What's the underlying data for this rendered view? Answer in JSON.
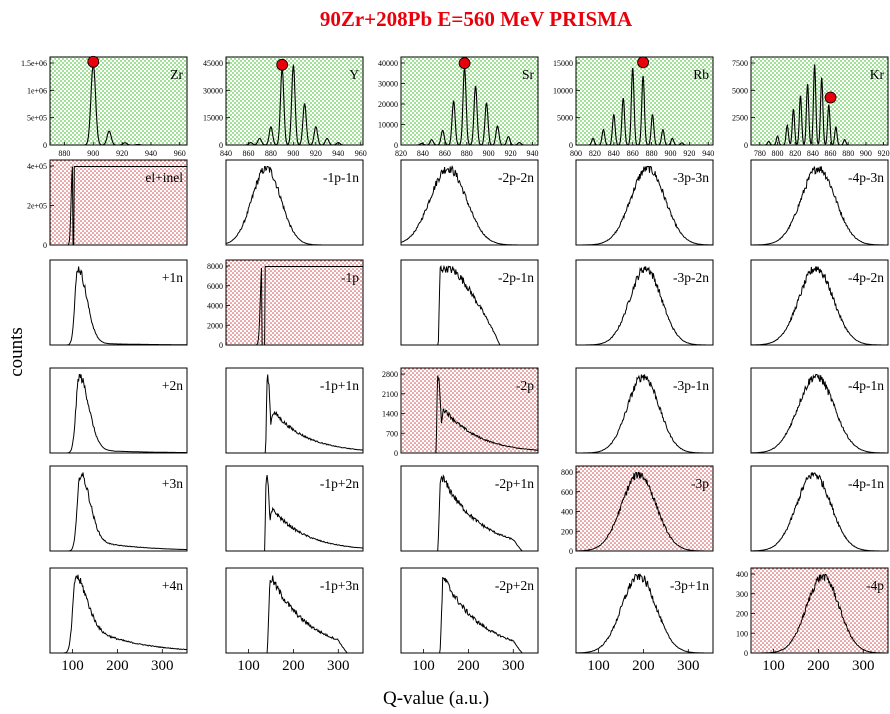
{
  "chart_data": {
    "type": "grid-of-histograms",
    "title": "90Zr+208Pb E=560 MeV PRISMA",
    "xlabel": "Q-value (a.u.)",
    "ylabel": "counts",
    "xticks_bottom": [
      "100",
      "200",
      "300"
    ],
    "colors": {
      "title": "#e8000b",
      "marker": "#e8000b",
      "top_row_fill": "#9be08f",
      "diag_fill": "#e06b6b",
      "curve": "#000000"
    },
    "top_row": [
      {
        "label": "Zr",
        "xticks": [
          "880",
          "900",
          "920",
          "940",
          "960"
        ],
        "xlim": [
          870,
          965
        ],
        "yticks": [
          "0",
          "5e+05",
          "1e+06",
          "1.5e+06"
        ],
        "ylim": [
          0,
          1550000
        ],
        "peaks": [
          [
            900,
            1450000,
            1.6
          ],
          [
            911,
            250000,
            1.4
          ],
          [
            922,
            40000,
            1.4
          ],
          [
            931,
            8000,
            1.4
          ]
        ],
        "marker": [
          900,
          1500000
        ]
      },
      {
        "label": "Y",
        "xticks": [
          "840",
          "860",
          "880",
          "900",
          "920",
          "940",
          "960"
        ],
        "xlim": [
          840,
          962
        ],
        "yticks": [
          "0",
          "15000",
          "30000",
          "45000"
        ],
        "ylim": [
          0,
          52000
        ],
        "peaks": [
          [
            862,
            1500,
            1.6
          ],
          [
            870,
            4000,
            1.6
          ],
          [
            880,
            11000,
            1.5
          ],
          [
            890,
            46000,
            1.5
          ],
          [
            900,
            48000,
            1.5
          ],
          [
            910,
            25000,
            1.5
          ],
          [
            920,
            11000,
            1.5
          ],
          [
            930,
            4000,
            1.5
          ],
          [
            940,
            1500,
            1.5
          ]
        ],
        "marker": [
          890,
          48500
        ]
      },
      {
        "label": "Sr",
        "xticks": [
          "820",
          "840",
          "860",
          "880",
          "900",
          "920",
          "940"
        ],
        "xlim": [
          820,
          945
        ],
        "yticks": [
          "0",
          "10000",
          "20000",
          "30000",
          "40000"
        ],
        "ylim": [
          0,
          41000
        ],
        "peaks": [
          [
            839,
            800,
            1.4
          ],
          [
            848,
            2500,
            1.4
          ],
          [
            858,
            7000,
            1.4
          ],
          [
            868,
            21000,
            1.4
          ],
          [
            878,
            37000,
            1.4
          ],
          [
            888,
            28000,
            1.4
          ],
          [
            898,
            20000,
            1.4
          ],
          [
            908,
            9000,
            1.4
          ],
          [
            918,
            4000,
            1.4
          ],
          [
            928,
            1200,
            1.4
          ]
        ],
        "marker": [
          878,
          39000
        ]
      },
      {
        "label": "Rb",
        "xticks": [
          "800",
          "820",
          "840",
          "860",
          "880",
          "900",
          "920",
          "940"
        ],
        "xlim": [
          800,
          945
        ],
        "yticks": [
          "0",
          "5000",
          "10000",
          "15000"
        ],
        "ylim": [
          0,
          15600
        ],
        "peaks": [
          [
            818,
            1200,
            1.4
          ],
          [
            829,
            2800,
            1.4
          ],
          [
            840,
            5500,
            1.4
          ],
          [
            850,
            8500,
            1.4
          ],
          [
            860,
            14000,
            1.4
          ],
          [
            871,
            12500,
            1.4
          ],
          [
            881,
            5500,
            1.4
          ],
          [
            892,
            2800,
            1.4
          ],
          [
            902,
            1200,
            1.4
          ],
          [
            912,
            400,
            1.4
          ]
        ],
        "marker": [
          871,
          15000
        ]
      },
      {
        "label": "Kr",
        "xticks": [
          "780",
          "800",
          "820",
          "840",
          "860",
          "880",
          "900",
          "920"
        ],
        "xlim": [
          770,
          925
        ],
        "yticks": [
          "0",
          "2500",
          "5000",
          "7500"
        ],
        "ylim": [
          0,
          9600
        ],
        "peaks": [
          [
            790,
            400,
            1.3
          ],
          [
            800,
            1000,
            1.3
          ],
          [
            811,
            2200,
            1.3
          ],
          [
            818,
            4000,
            1.3
          ],
          [
            826,
            5500,
            1.3
          ],
          [
            834,
            6800,
            1.3
          ],
          [
            842,
            9000,
            1.3
          ],
          [
            850,
            7500,
            1.3
          ],
          [
            858,
            4500,
            1.3
          ],
          [
            866,
            2000,
            1.3
          ],
          [
            876,
            600,
            1.3
          ]
        ],
        "marker": [
          860,
          5300
        ]
      }
    ],
    "grid": [
      [
        {
          "label": "el+inel",
          "diag": true,
          "yticks": [
            "0",
            "2e+05",
            "4e+05"
          ],
          "ylim": [
            0,
            500000
          ],
          "shape": "sharp",
          "params": [
            100,
            480000,
            4,
            18,
            2000
          ]
        },
        {
          "label": "-1p-1n",
          "diag": false,
          "yticks": [],
          "shape": "broad",
          "params": [
            140,
            32
          ]
        },
        {
          "label": "-2p-2n",
          "diag": false,
          "yticks": [],
          "shape": "broad",
          "params": [
            155,
            40
          ]
        },
        {
          "label": "-3p-3n",
          "diag": false,
          "yticks": [],
          "shape": "broad",
          "params": [
            210,
            38
          ]
        },
        {
          "label": "-4p-3n",
          "diag": false,
          "yticks": [],
          "shape": "broad",
          "params": [
            200,
            38
          ]
        }
      ],
      [
        {
          "label": "+1n",
          "diag": false,
          "yticks": [],
          "shape": "sharp",
          "params": [
            112,
            1.0,
            9,
            28,
            0.03
          ]
        },
        {
          "label": "-1p",
          "diag": true,
          "yticks": [
            "0",
            "2000",
            "4000",
            "6000",
            "8000"
          ],
          "ylim": [
            0,
            8500
          ],
          "shape": "sharp",
          "params": [
            130,
            8000,
            5,
            28,
            650
          ]
        },
        {
          "label": "-2p-1n",
          "diag": false,
          "yticks": [],
          "shape": "plateau",
          "params": [
            135,
            270
          ]
        },
        {
          "label": "-3p-2n",
          "diag": false,
          "yticks": [],
          "shape": "broad",
          "params": [
            205,
            35
          ]
        },
        {
          "label": "-4p-2n",
          "diag": false,
          "yticks": [],
          "shape": "broad",
          "params": [
            195,
            38
          ]
        }
      ],
      [
        {
          "label": "+2n",
          "diag": false,
          "yticks": [],
          "shape": "sharp",
          "params": [
            115,
            1.0,
            10,
            30,
            0.05
          ]
        },
        {
          "label": "-1p+1n",
          "diag": false,
          "yticks": [],
          "shape": "skew",
          "params": [
            140,
            0.22
          ]
        },
        {
          "label": "-2p",
          "diag": true,
          "yticks": [
            "0",
            "700",
            "1400",
            "2100",
            "2800"
          ],
          "ylim": [
            0,
            3000
          ],
          "shape": "skew",
          "params": [
            130,
            0.3
          ],
          "amp": 2700
        },
        {
          "label": "-3p-1n",
          "diag": false,
          "yticks": [],
          "shape": "broad",
          "params": [
            200,
            35
          ]
        },
        {
          "label": "-4p-1n",
          "diag": false,
          "yticks": [],
          "shape": "broad",
          "params": [
            195,
            40
          ]
        }
      ],
      [
        {
          "label": "+3n",
          "diag": false,
          "yticks": [],
          "shape": "sharp",
          "params": [
            118,
            1.0,
            10,
            30,
            0.16
          ]
        },
        {
          "label": "-1p+2n",
          "diag": false,
          "yticks": [],
          "shape": "skew",
          "params": [
            138,
            0.22
          ]
        },
        {
          "label": "-2p+1n",
          "diag": false,
          "yticks": [],
          "shape": "skew2",
          "params": [
            135,
            0.3
          ]
        },
        {
          "label": "-3p",
          "diag": true,
          "yticks": [
            "0",
            "200",
            "400",
            "600",
            "800"
          ],
          "ylim": [
            0,
            820
          ],
          "shape": "broad",
          "params": [
            190,
            38
          ],
          "amp": 700
        },
        {
          "label": "-4p-1n",
          "diag": false,
          "yticks": [],
          "shape": "broad",
          "params": [
            190,
            38
          ]
        }
      ],
      [
        {
          "label": "+4n",
          "diag": false,
          "yticks": [],
          "shape": "sharp",
          "params": [
            108,
            1.0,
            10,
            35,
            0.42
          ]
        },
        {
          "label": "-1p+3n",
          "diag": false,
          "yticks": [],
          "shape": "skew2",
          "params": [
            145,
            0.4
          ]
        },
        {
          "label": "-2p+2n",
          "diag": false,
          "yticks": [],
          "shape": "skew2",
          "params": [
            140,
            0.3
          ]
        },
        {
          "label": "-3p+1n",
          "diag": false,
          "yticks": [],
          "shape": "broad",
          "params": [
            190,
            38
          ]
        },
        {
          "label": "-4p",
          "diag": true,
          "yticks": [
            "0",
            "100",
            "200",
            "300",
            "400"
          ],
          "ylim": [
            0,
            410
          ],
          "shape": "broad",
          "params": [
            210,
            36
          ],
          "amp": 270
        }
      ]
    ]
  }
}
